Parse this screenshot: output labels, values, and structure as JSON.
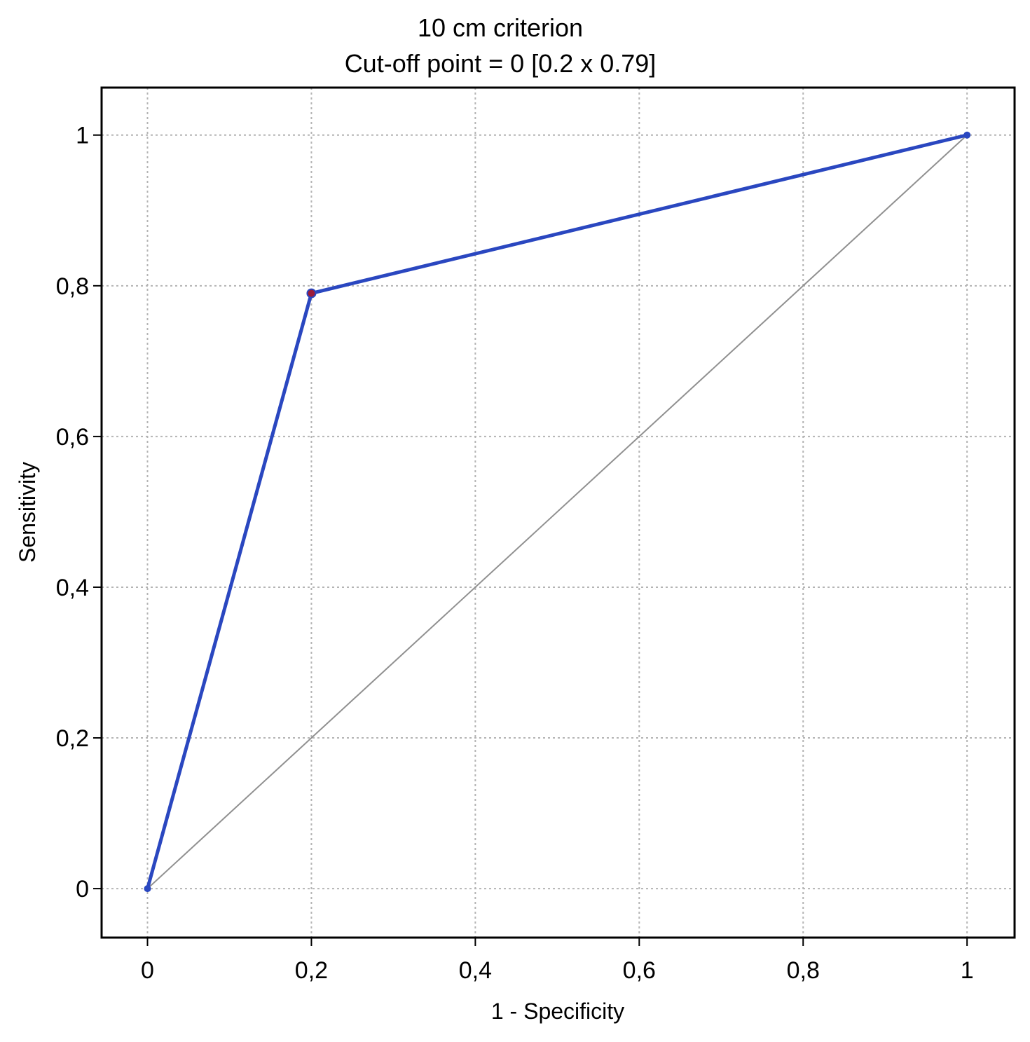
{
  "chart_data": {
    "type": "line",
    "title": "10 cm criterion",
    "subtitle": "Cut-off point = 0 [0.2 x 0.79]",
    "xlabel": "1 - Specificity",
    "ylabel": "Sensitivity",
    "xlim": [
      -0.056,
      1.058
    ],
    "ylim": [
      -0.065,
      1.063
    ],
    "x_ticks": [
      0,
      0.2,
      0.4,
      0.6,
      0.8,
      1
    ],
    "x_tick_labels": [
      "0",
      "0,2",
      "0,4",
      "0,6",
      "0,8",
      "1"
    ],
    "y_ticks": [
      0,
      0.2,
      0.4,
      0.6,
      0.8,
      1
    ],
    "y_tick_labels": [
      "0",
      "0,2",
      "0,4",
      "0,6",
      "0,8",
      "1"
    ],
    "grid": true,
    "series": [
      {
        "x": [
          0,
          0.2,
          1
        ],
        "y": [
          0,
          0.79,
          1
        ],
        "color": "#2a47c0"
      },
      {
        "x": [
          0,
          1
        ],
        "y": [
          0,
          1
        ],
        "color": "#909090",
        "style": "reference"
      }
    ],
    "cutoff_point": {
      "x": 0.2,
      "y": 0.79,
      "color": "#9b1b3a"
    }
  }
}
